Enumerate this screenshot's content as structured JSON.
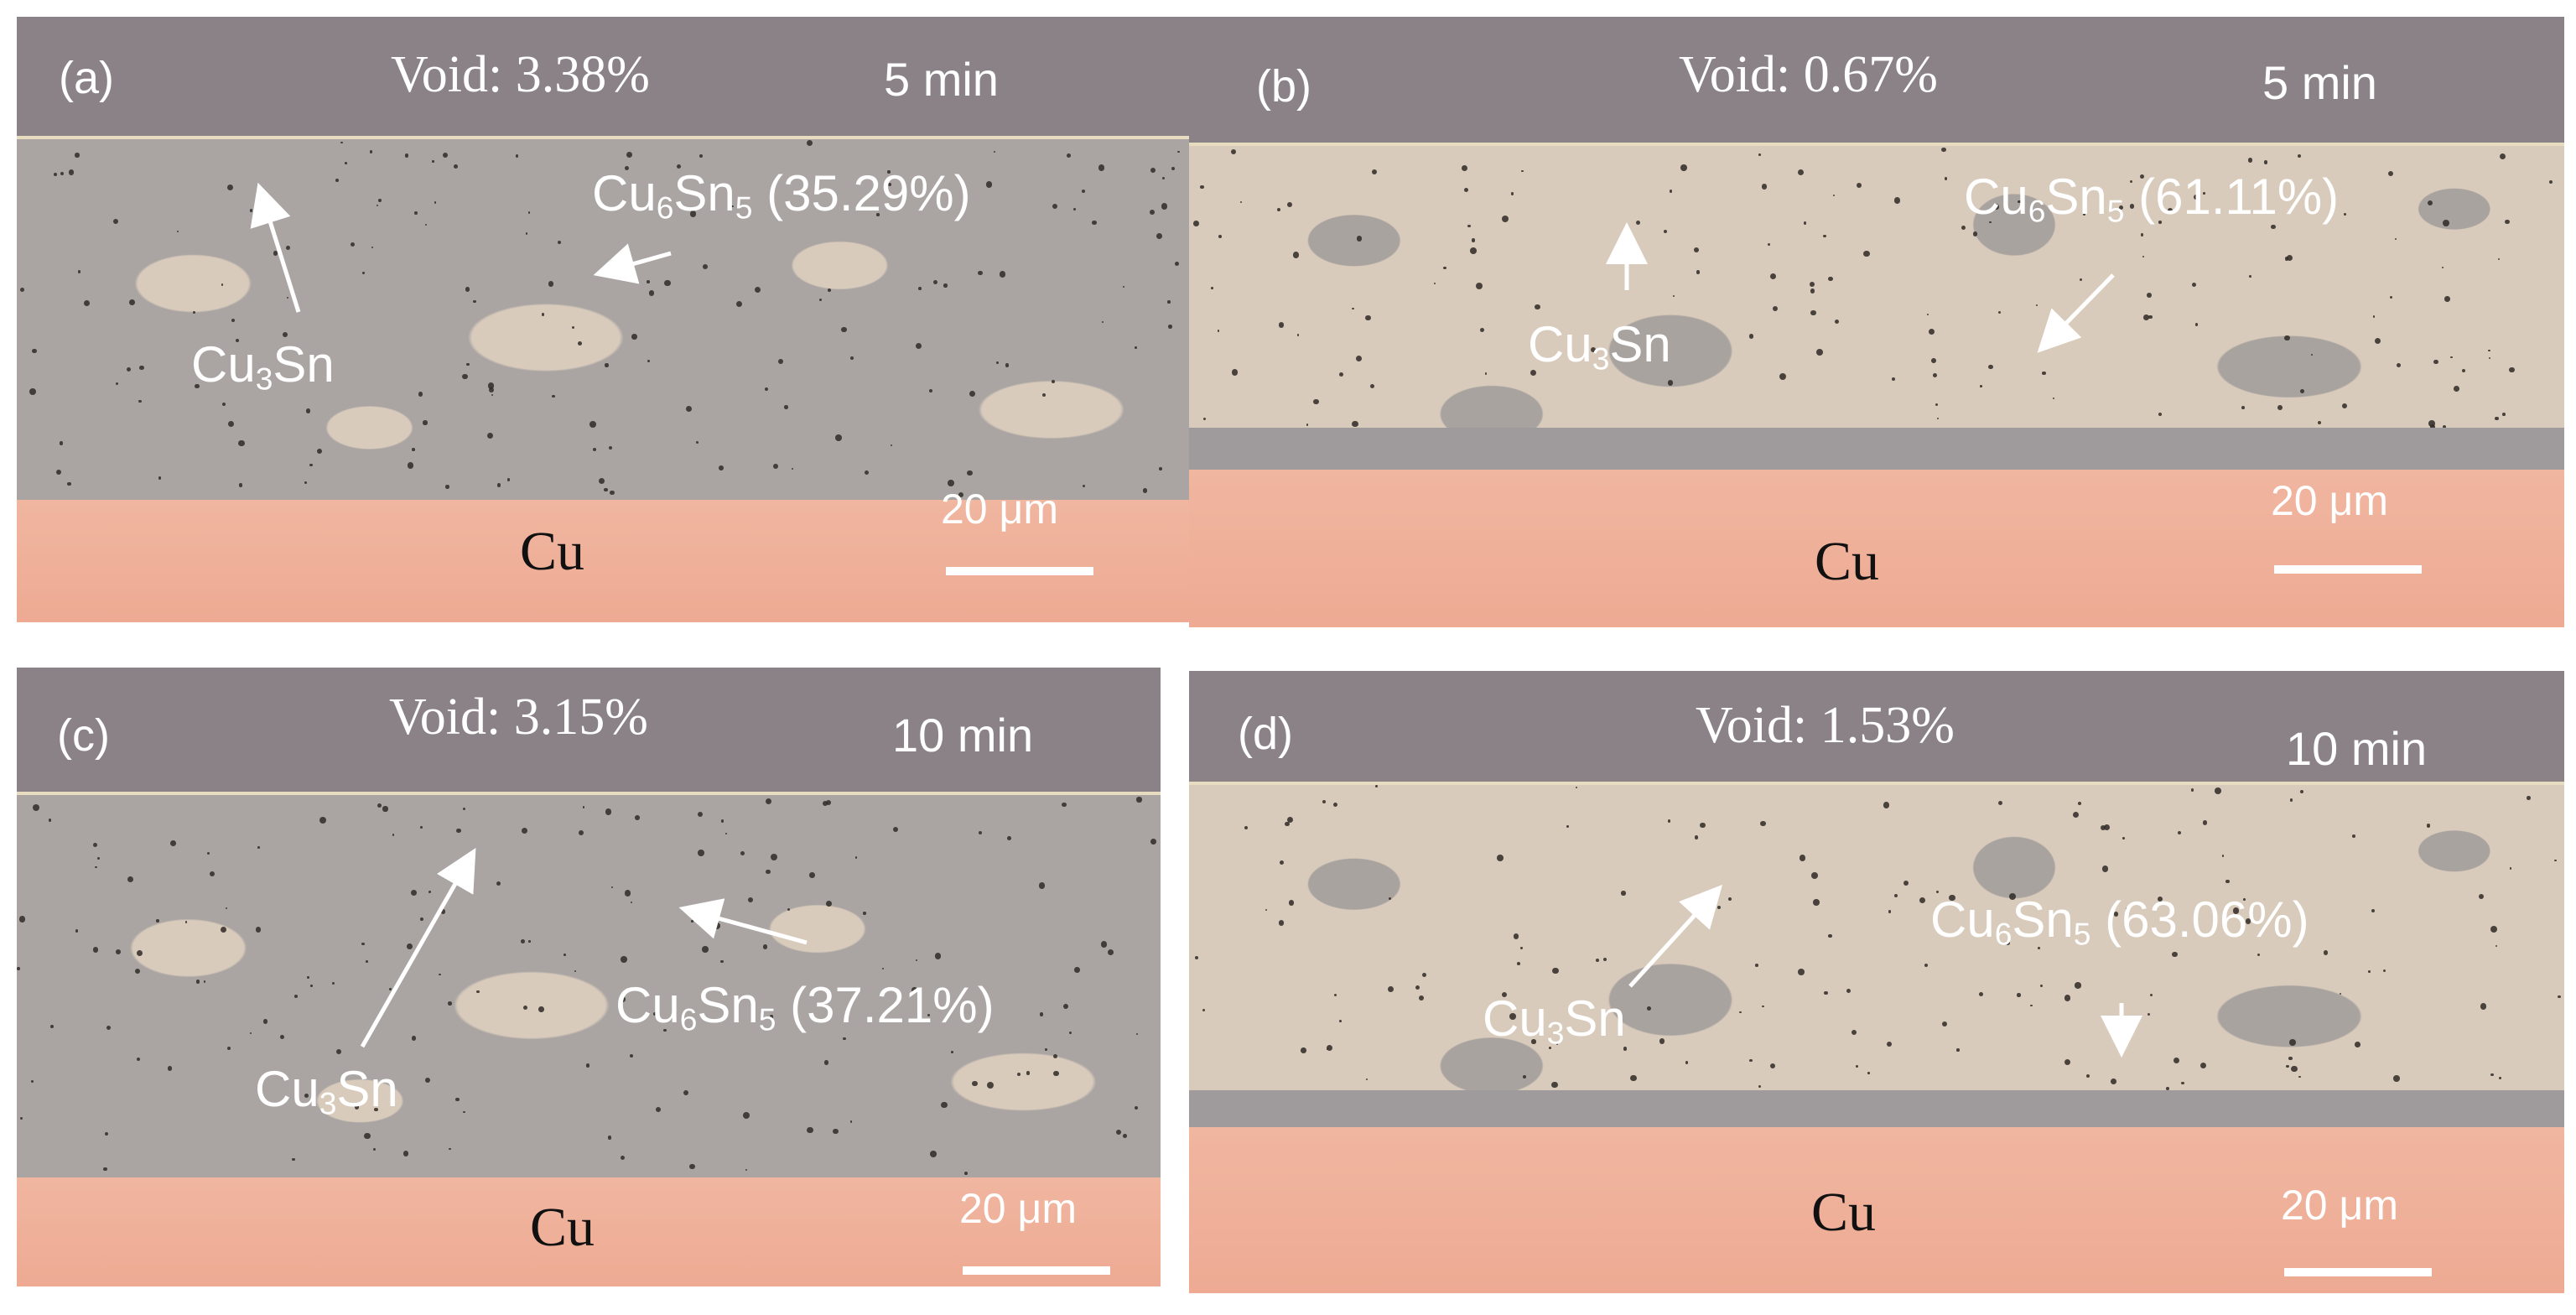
{
  "panels": [
    {
      "letter": "(a)",
      "void": "Void: 3.38%",
      "time": "5 min",
      "cu6sn5": {
        "base1": "Cu",
        "sub1": "6",
        "base2": "Sn",
        "sub2": "5",
        "pct": " (35.29%)"
      },
      "cu3sn": {
        "base": "Cu",
        "sub": "3",
        "tail": "Sn"
      },
      "cu": "Cu",
      "scale": "20 μm"
    },
    {
      "letter": "(b)",
      "void": "Void: 0.67%",
      "time": "5 min",
      "cu6sn5": {
        "base1": "Cu",
        "sub1": "6",
        "base2": "Sn",
        "sub2": "5",
        "pct": " (61.11%)"
      },
      "cu3sn": {
        "base": "Cu",
        "sub": "3",
        "tail": "Sn"
      },
      "cu": "Cu",
      "scale": "20 μm"
    },
    {
      "letter": "(c)",
      "void": "Void: 3.15%",
      "time": "10 min",
      "cu6sn5": {
        "base1": "Cu",
        "sub1": "6",
        "base2": "Sn",
        "sub2": "5",
        "pct": " (37.21%)"
      },
      "cu3sn": {
        "base": "Cu",
        "sub": "3",
        "tail": "Sn"
      },
      "cu": "Cu",
      "scale": "20 μm"
    },
    {
      "letter": "(d)",
      "void": "Void: 1.53%",
      "time": "10 min",
      "cu6sn5": {
        "base1": "Cu",
        "sub1": "6",
        "base2": "Sn",
        "sub2": "5",
        "pct": " (63.06%)"
      },
      "cu3sn": {
        "base": "Cu",
        "sub": "3",
        "tail": "Sn"
      },
      "cu": "Cu",
      "scale": "20 μm"
    }
  ],
  "colors": {
    "mount": "#8a8286",
    "cu6sn5_phase": "#d9cbbb",
    "cu3sn_phase": "#a9a3a0",
    "copper": "#eeaa93",
    "label_text": "#ffffff"
  }
}
